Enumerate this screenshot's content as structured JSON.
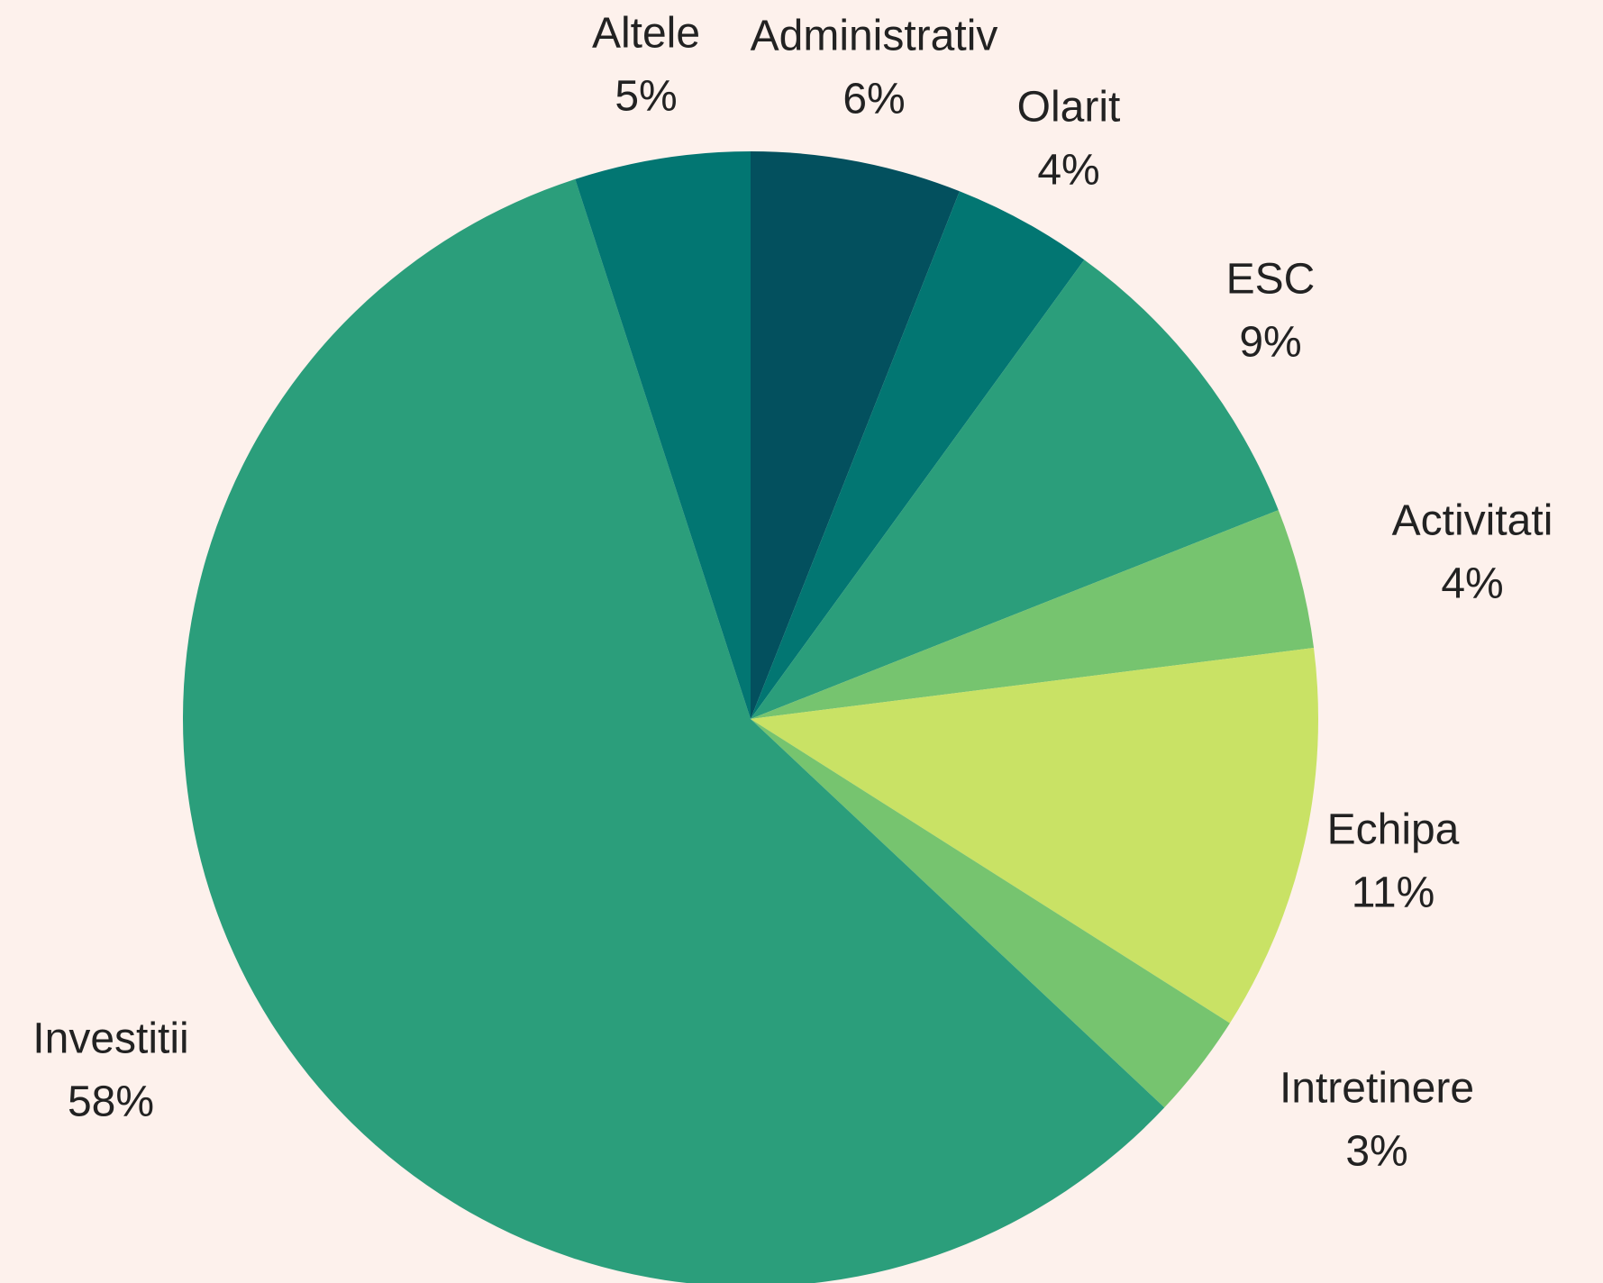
{
  "chart_data": {
    "type": "pie",
    "categories": [
      "Administrativ",
      "Olarit",
      "ESC",
      "Activitati",
      "Echipa",
      "Intretinere",
      "Investitii",
      "Altele"
    ],
    "values": [
      6,
      4,
      9,
      4,
      11,
      3,
      58,
      5
    ],
    "value_labels": [
      "6%",
      "4%",
      "9%",
      "4%",
      "11%",
      "3%",
      "58%",
      "5%"
    ],
    "colors": [
      "#03505e",
      "#027672",
      "#2b9e7b",
      "#76c46f",
      "#c9e265",
      "#76c46f",
      "#2b9e7b",
      "#027672"
    ]
  }
}
